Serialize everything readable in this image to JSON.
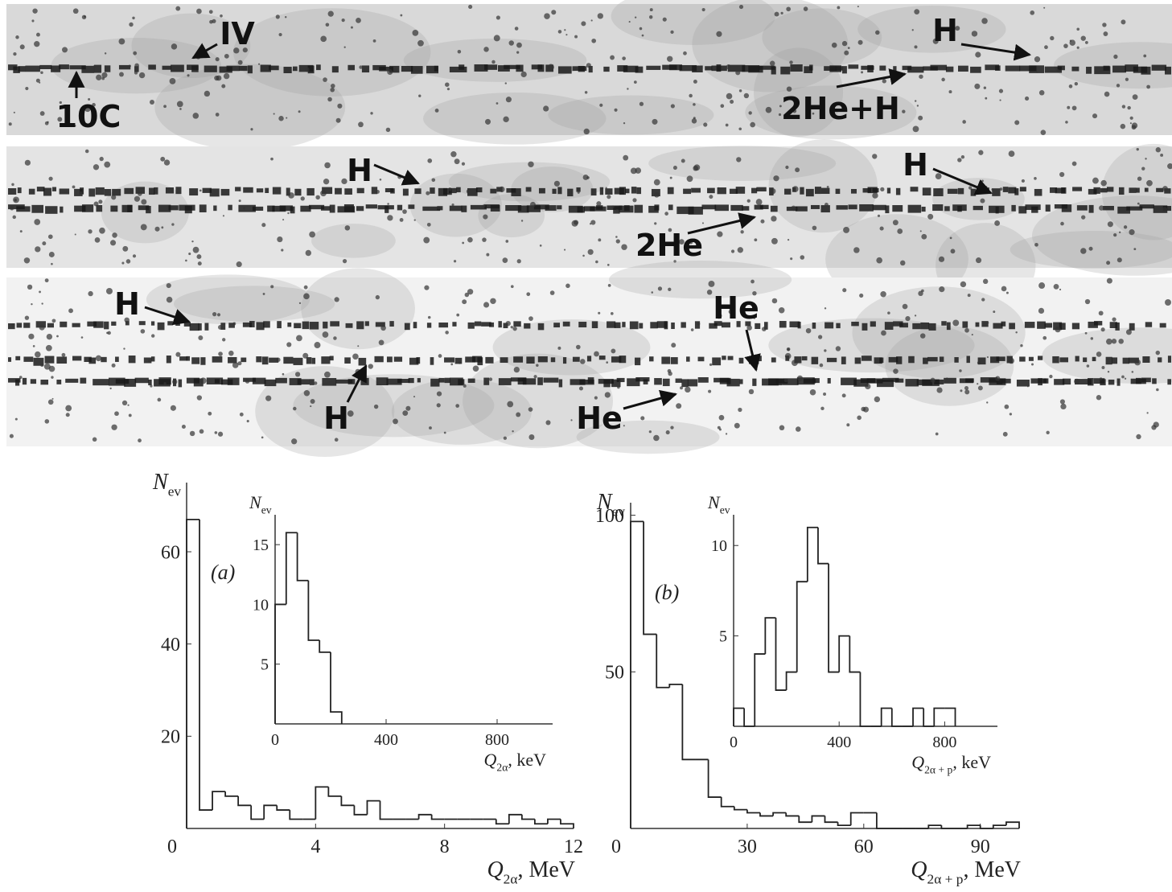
{
  "photos": [
    {
      "labels": [
        "IV",
        "10C",
        "H",
        "2He+H"
      ]
    },
    {
      "labels": [
        "H",
        "H",
        "2He"
      ]
    },
    {
      "labels": [
        "H",
        "He",
        "H",
        "He"
      ]
    }
  ],
  "chart_data": [
    {
      "type": "histogram",
      "panel": "(a)",
      "ylabel": [
        "N",
        "ev"
      ],
      "xlabel": [
        "Q",
        "2α",
        ", MeV"
      ],
      "bins": [
        0,
        0.4,
        0.8,
        1.2,
        1.6,
        2.0,
        2.4,
        2.8,
        3.2,
        3.6,
        4.0,
        4.4,
        4.8,
        5.2,
        5.6,
        6.0,
        6.4,
        6.8,
        7.2,
        7.6,
        8.0,
        8.4,
        8.8,
        9.2,
        9.6,
        10.0,
        10.4,
        10.8,
        11.2,
        11.6,
        12.0
      ],
      "values": [
        67,
        4,
        8,
        7,
        5,
        2,
        5,
        4,
        2,
        2,
        9,
        7,
        5,
        3,
        6,
        2,
        2,
        2,
        3,
        2,
        2,
        2,
        2,
        2,
        1,
        3,
        2,
        1,
        2,
        1
      ],
      "xlim": [
        0,
        12
      ],
      "ylim": [
        0,
        75
      ],
      "xticks": [
        0,
        4,
        8,
        12
      ],
      "yticks": [
        20,
        40,
        60
      ],
      "color": "#222222"
    },
    {
      "type": "histogram",
      "ylabel": [
        "N",
        "ev"
      ],
      "xlabel": [
        "Q",
        "2α",
        ", keV"
      ],
      "bins": [
        0,
        40,
        80,
        120,
        160,
        200,
        240
      ],
      "values": [
        10,
        16,
        12,
        7,
        6,
        1
      ],
      "xlim": [
        0,
        1000
      ],
      "ylim": [
        0,
        17.5
      ],
      "xticks": [
        0,
        400,
        800
      ],
      "yticks": [
        5,
        10,
        15
      ],
      "color": "#222222"
    },
    {
      "type": "histogram",
      "panel": "(b)",
      "ylabel": [
        "N",
        "ev"
      ],
      "xlabel": [
        "Q",
        "2α + p",
        ", MeV"
      ],
      "bins": [
        0,
        3.33,
        6.67,
        10,
        13.33,
        16.67,
        20,
        23.33,
        26.67,
        30,
        33.33,
        36.67,
        40,
        43.33,
        46.67,
        50,
        53.33,
        56.67,
        60,
        63.33,
        66.67,
        70,
        73.33,
        76.67,
        80,
        83.33,
        86.67,
        90,
        93.33,
        96.67,
        100
      ],
      "values": [
        98,
        62,
        45,
        46,
        22,
        22,
        10,
        7,
        6,
        5,
        4,
        5,
        4,
        2,
        4,
        2,
        1,
        5,
        5,
        0,
        0,
        0,
        0,
        1,
        0,
        0,
        1,
        0,
        1,
        2
      ],
      "xlim": [
        0,
        100
      ],
      "ylim": [
        0,
        104
      ],
      "xticks": [
        0,
        30,
        60,
        90
      ],
      "yticks": [
        50,
        100
      ],
      "color": "#222222"
    },
    {
      "type": "histogram",
      "ylabel": [
        "N",
        "ev"
      ],
      "xlabel": [
        "Q",
        "2α + p",
        ", keV"
      ],
      "bins": [
        0,
        40,
        80,
        120,
        160,
        200,
        240,
        280,
        320,
        360,
        400,
        440,
        480,
        520,
        560,
        600,
        640,
        680,
        720,
        760,
        800,
        840
      ],
      "values": [
        1,
        0,
        4,
        6,
        2,
        3,
        8,
        11,
        9,
        3,
        5,
        3,
        0,
        0,
        1,
        0,
        0,
        1,
        0,
        1,
        1
      ],
      "xlim": [
        0,
        1000
      ],
      "ylim": [
        0,
        11.7
      ],
      "xticks": [
        0,
        400,
        800
      ],
      "yticks": [
        5,
        10
      ],
      "color": "#222222"
    }
  ]
}
